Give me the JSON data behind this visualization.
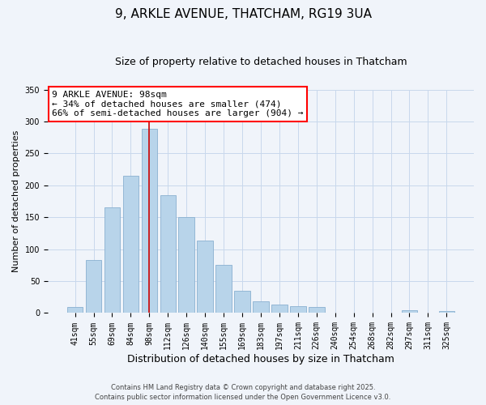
{
  "title": "9, ARKLE AVENUE, THATCHAM, RG19 3UA",
  "subtitle": "Size of property relative to detached houses in Thatcham",
  "xlabel": "Distribution of detached houses by size in Thatcham",
  "ylabel": "Number of detached properties",
  "categories": [
    "41sqm",
    "55sqm",
    "69sqm",
    "84sqm",
    "98sqm",
    "112sqm",
    "126sqm",
    "140sqm",
    "155sqm",
    "169sqm",
    "183sqm",
    "197sqm",
    "211sqm",
    "226sqm",
    "240sqm",
    "254sqm",
    "268sqm",
    "282sqm",
    "297sqm",
    "311sqm",
    "325sqm"
  ],
  "values": [
    10,
    83,
    165,
    215,
    288,
    185,
    150,
    113,
    75,
    35,
    18,
    13,
    11,
    9,
    0,
    0,
    0,
    0,
    5,
    0,
    3
  ],
  "bar_color": "#b8d4ea",
  "bar_edge_color": "#8ab0d0",
  "highlight_index": 4,
  "vline_color": "#cc0000",
  "annotation_line1": "9 ARKLE AVENUE: 98sqm",
  "annotation_line2": "← 34% of detached houses are smaller (474)",
  "annotation_line3": "66% of semi-detached houses are larger (904) →",
  "annotation_box_edge_color": "red",
  "ylim": [
    0,
    350
  ],
  "yticks": [
    0,
    50,
    100,
    150,
    200,
    250,
    300,
    350
  ],
  "footer1": "Contains HM Land Registry data © Crown copyright and database right 2025.",
  "footer2": "Contains public sector information licensed under the Open Government Licence v3.0.",
  "background_color": "#f0f4fa",
  "grid_color": "#c8d8ec",
  "title_fontsize": 11,
  "subtitle_fontsize": 9,
  "xlabel_fontsize": 9,
  "ylabel_fontsize": 8,
  "tick_fontsize": 7,
  "annotation_fontsize": 8,
  "footer_fontsize": 6
}
